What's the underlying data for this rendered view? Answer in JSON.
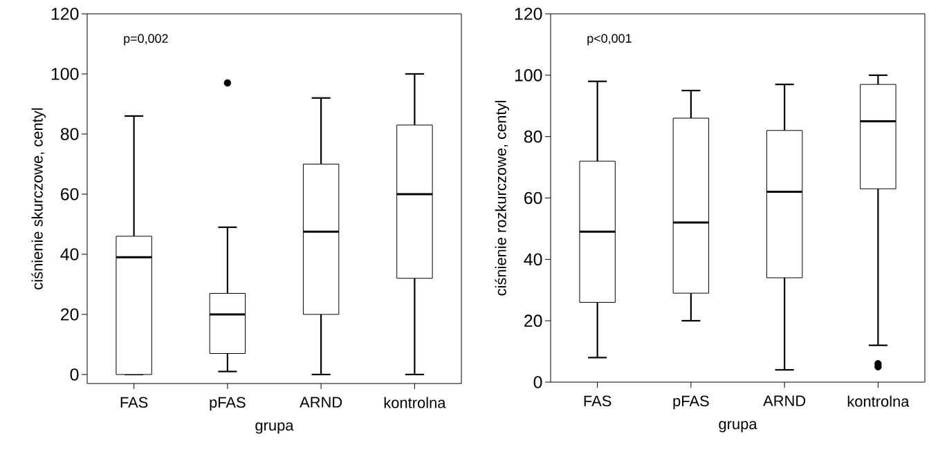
{
  "chart_data": [
    {
      "type": "box",
      "categories": [
        "FAS",
        "pFAS",
        "ARND",
        "kontrolna"
      ],
      "xlabel": "grupa",
      "ylabel": "ciśnienie skurczowe, centyl",
      "ylim": [
        -3,
        120
      ],
      "yticks": [
        0,
        20,
        40,
        60,
        80,
        100,
        120
      ],
      "annotations": [
        "p=0,002"
      ],
      "grid": false,
      "boxes": [
        {
          "low": 0,
          "q1": 0,
          "median": 39,
          "q3": 46,
          "high": 86
        },
        {
          "low": 1,
          "q1": 7,
          "median": 20,
          "q3": 27,
          "high": 49,
          "outliers": [
            97
          ]
        },
        {
          "low": 0,
          "q1": 20,
          "median": 47.5,
          "q3": 70,
          "high": 92
        },
        {
          "low": 0,
          "q1": 32,
          "median": 60,
          "q3": 83,
          "high": 100
        }
      ]
    },
    {
      "type": "box",
      "categories": [
        "FAS",
        "pFAS",
        "ARND",
        "kontrolna"
      ],
      "xlabel": "grupa",
      "ylabel": "ciśnienie rozkurczowe, centyl",
      "ylim": [
        0,
        120
      ],
      "yticks": [
        0,
        20,
        40,
        60,
        80,
        100,
        120
      ],
      "annotations": [
        "p<0,001"
      ],
      "grid": false,
      "boxes": [
        {
          "low": 8,
          "q1": 26,
          "median": 49,
          "q3": 72,
          "high": 98
        },
        {
          "low": 20,
          "q1": 29,
          "median": 52,
          "q3": 86,
          "high": 95
        },
        {
          "low": 4,
          "q1": 34,
          "median": 62,
          "q3": 82,
          "high": 97
        },
        {
          "low": 12,
          "q1": 63,
          "median": 85,
          "q3": 97,
          "high": 100,
          "outliers": [
            5,
            6
          ]
        }
      ]
    }
  ]
}
